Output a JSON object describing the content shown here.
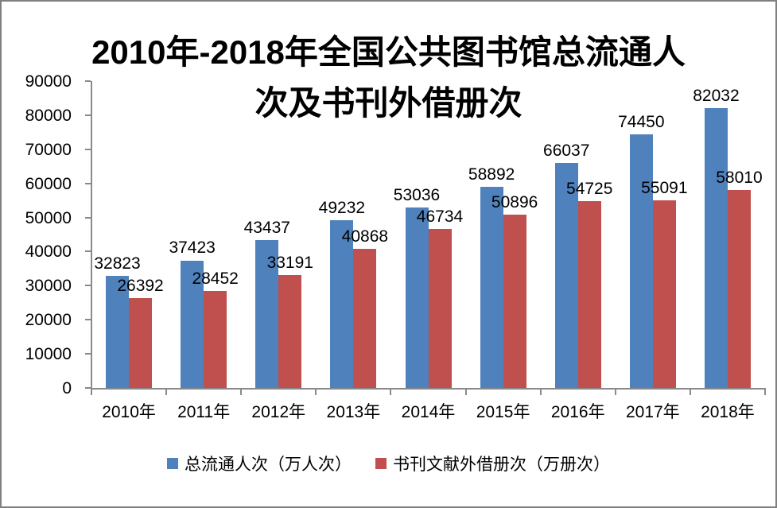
{
  "chart_data": {
    "type": "bar",
    "title": "2010年-2018年全国公共图书馆总流通人次及书刊外借册次",
    "title_line1": "2010年-2018年全国公共图书馆总流通人",
    "title_line2": "次及书刊外借册次",
    "categories": [
      "2010年",
      "2011年",
      "2012年",
      "2013年",
      "2014年",
      "2015年",
      "2016年",
      "2017年",
      "2018年"
    ],
    "series": [
      {
        "name": "总流通人次（万人次）",
        "color": "#4F81BD",
        "values": [
          32823,
          37423,
          43437,
          49232,
          53036,
          58892,
          66037,
          74450,
          82032
        ]
      },
      {
        "name": "书刊文献外借册次（万册次）",
        "color": "#C0504D",
        "values": [
          26392,
          28452,
          33191,
          40868,
          46734,
          50896,
          54725,
          55091,
          58010
        ]
      }
    ],
    "xlabel": "",
    "ylabel": "",
    "ylim": [
      0,
      90000
    ],
    "ytick_step": 10000,
    "ytick_labels": [
      "0",
      "10000",
      "20000",
      "30000",
      "40000",
      "50000",
      "60000",
      "70000",
      "80000",
      "90000"
    ],
    "grid": false,
    "data_labels": true,
    "legend_position": "bottom",
    "colors": {
      "axis": "#8a8a8a",
      "text": "#000000",
      "background": "#ffffff",
      "border": "#808080"
    }
  }
}
